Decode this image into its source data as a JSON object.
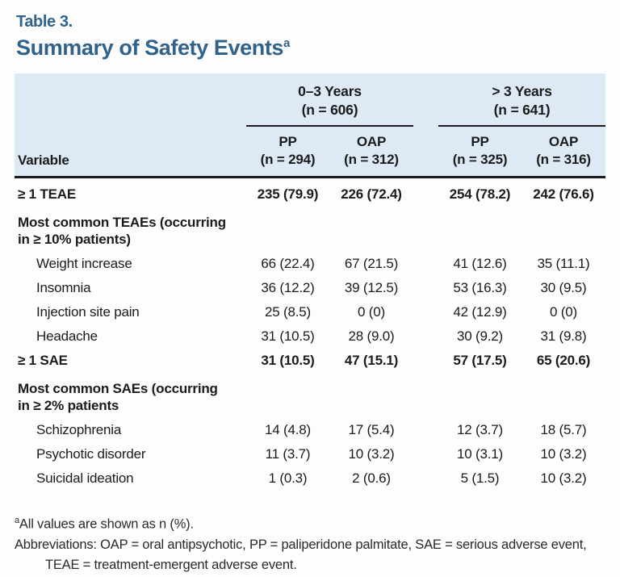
{
  "page": {
    "eyebrow": "Table 3.",
    "title": "Summary of Safety Events",
    "title_sup": "a"
  },
  "table": {
    "variable_header": "Variable",
    "col_groups": [
      {
        "label": "0–3 Years",
        "n": "(n = 606)"
      },
      {
        "label": "> 3 Years",
        "n": "(n = 641)"
      }
    ],
    "sub_columns": [
      {
        "label": "PP",
        "n": "(n = 294)"
      },
      {
        "label": "OAP",
        "n": "(n = 312)"
      },
      {
        "label": "PP",
        "n": "(n = 325)"
      },
      {
        "label": "OAP",
        "n": "(n = 316)"
      }
    ],
    "rows": [
      {
        "label_lines": [
          "≥ 1 TEAE"
        ],
        "bold": true,
        "indent": false,
        "section": false,
        "values": [
          "235 (79.9)",
          "226 (72.4)",
          "254 (78.2)",
          "242 (76.6)"
        ]
      },
      {
        "label_lines": [
          "Most common TEAEs (occurring",
          "in ≥ 10% patients)"
        ],
        "bold": true,
        "indent": false,
        "section": true,
        "values": [
          "",
          "",
          "",
          ""
        ]
      },
      {
        "label_lines": [
          "Weight increase"
        ],
        "bold": false,
        "indent": true,
        "section": false,
        "values": [
          "66 (22.4)",
          "67 (21.5)",
          "41 (12.6)",
          "35 (11.1)"
        ]
      },
      {
        "label_lines": [
          "Insomnia"
        ],
        "bold": false,
        "indent": true,
        "section": false,
        "values": [
          "36 (12.2)",
          "39 (12.5)",
          "53 (16.3)",
          "30 (9.5)"
        ]
      },
      {
        "label_lines": [
          "Injection site pain"
        ],
        "bold": false,
        "indent": true,
        "section": false,
        "values": [
          "25 (8.5)",
          "0 (0)",
          "42 (12.9)",
          "0 (0)"
        ]
      },
      {
        "label_lines": [
          "Headache"
        ],
        "bold": false,
        "indent": true,
        "section": false,
        "values": [
          "31 (10.5)",
          "28 (9.0)",
          "30 (9.2)",
          "31 (9.8)"
        ]
      },
      {
        "label_lines": [
          "≥ 1 SAE"
        ],
        "bold": true,
        "indent": false,
        "section": false,
        "values": [
          "31 (10.5)",
          "47 (15.1)",
          "57 (17.5)",
          "65 (20.6)"
        ]
      },
      {
        "label_lines": [
          "Most common SAEs (occurring",
          "in ≥ 2% patients"
        ],
        "bold": true,
        "indent": false,
        "section": true,
        "values": [
          "",
          "",
          "",
          ""
        ]
      },
      {
        "label_lines": [
          "Schizophrenia"
        ],
        "bold": false,
        "indent": true,
        "section": false,
        "values": [
          "14 (4.8)",
          "17 (5.4)",
          "12 (3.7)",
          "18 (5.7)"
        ]
      },
      {
        "label_lines": [
          "Psychotic disorder"
        ],
        "bold": false,
        "indent": true,
        "section": false,
        "values": [
          "11 (3.7)",
          "10 (3.2)",
          "10 (3.1)",
          "10 (3.2)"
        ]
      },
      {
        "label_lines": [
          "Suicidal ideation"
        ],
        "bold": false,
        "indent": true,
        "section": false,
        "values": [
          "1 (0.3)",
          "2 (0.6)",
          "5 (1.5)",
          "10 (3.2)"
        ]
      }
    ]
  },
  "footnotes": {
    "note_sup": "a",
    "note_text": "All values are shown as n (%).",
    "abbreviations": "Abbreviations: OAP = oral antipsychotic, PP = paliperidone palmitate, SAE = serious adverse event, TEAE = treatment-emergent adverse event."
  },
  "colors": {
    "title_blue": "#30628b",
    "header_bg": "#dde9f5",
    "rule_dark": "#1b1b1b",
    "bottom_rule": "#4f749b"
  }
}
